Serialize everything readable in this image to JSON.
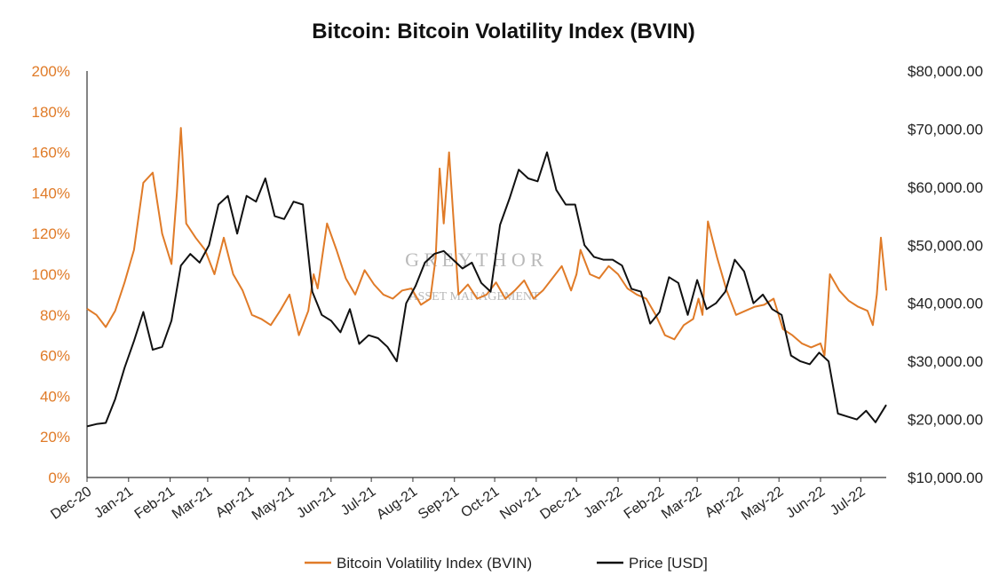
{
  "chart_data": {
    "type": "line",
    "title": "Bitcoin: Bitcoin Volatility Index (BVIN)",
    "x_tick_labels": [
      "Dec-20",
      "Jan-21",
      "Feb-21",
      "Mar-21",
      "Apr-21",
      "May-21",
      "Jun-21",
      "Jul-21",
      "Aug-21",
      "Sep-21",
      "Oct-21",
      "Nov-21",
      "Dec-21",
      "Jan-22",
      "Feb-22",
      "Mar-22",
      "Apr-22",
      "May-22",
      "Jun-22",
      "Jul-22"
    ],
    "y_left": {
      "ticks": [
        "0%",
        "20%",
        "40%",
        "60%",
        "80%",
        "100%",
        "120%",
        "140%",
        "160%",
        "180%",
        "200%"
      ],
      "range": [
        0,
        200
      ]
    },
    "y_right": {
      "ticks": [
        "$10,000.00",
        "$20,000.00",
        "$30,000.00",
        "$40,000.00",
        "$50,000.00",
        "$60,000.00",
        "$70,000.00",
        "$80,000.00"
      ],
      "range": [
        10000,
        80000
      ]
    },
    "grid": false,
    "legend_position": "bottom",
    "watermark": {
      "line1": "G R E Y T H O R",
      "line2": "ASSET MANAGEMENT"
    },
    "series": [
      {
        "name": "Bitcoin Volatility Index (BVIN)",
        "axis": "left",
        "color": "#E07B28",
        "x": [
          "2020-12-01",
          "2020-12-08",
          "2020-12-15",
          "2020-12-22",
          "2020-12-29",
          "2021-01-05",
          "2021-01-12",
          "2021-01-19",
          "2021-01-26",
          "2021-02-02",
          "2021-02-06",
          "2021-02-09",
          "2021-02-13",
          "2021-02-20",
          "2021-02-27",
          "2021-03-06",
          "2021-03-13",
          "2021-03-20",
          "2021-03-27",
          "2021-04-03",
          "2021-04-10",
          "2021-04-17",
          "2021-04-24",
          "2021-05-01",
          "2021-05-08",
          "2021-05-15",
          "2021-05-19",
          "2021-05-22",
          "2021-05-29",
          "2021-06-05",
          "2021-06-12",
          "2021-06-19",
          "2021-06-26",
          "2021-07-03",
          "2021-07-10",
          "2021-07-17",
          "2021-07-24",
          "2021-07-31",
          "2021-08-07",
          "2021-08-14",
          "2021-08-18",
          "2021-08-21",
          "2021-08-24",
          "2021-08-28",
          "2021-09-04",
          "2021-09-11",
          "2021-09-18",
          "2021-09-25",
          "2021-10-02",
          "2021-10-09",
          "2021-10-16",
          "2021-10-23",
          "2021-10-30",
          "2021-11-06",
          "2021-11-13",
          "2021-11-20",
          "2021-11-27",
          "2021-12-01",
          "2021-12-04",
          "2021-12-11",
          "2021-12-18",
          "2021-12-25",
          "2022-01-01",
          "2022-01-08",
          "2022-01-15",
          "2022-01-22",
          "2022-01-29",
          "2022-02-05",
          "2022-02-12",
          "2022-02-19",
          "2022-02-26",
          "2022-03-02",
          "2022-03-05",
          "2022-03-09",
          "2022-03-16",
          "2022-03-23",
          "2022-03-30",
          "2022-04-06",
          "2022-04-13",
          "2022-04-20",
          "2022-04-27",
          "2022-05-04",
          "2022-05-11",
          "2022-05-18",
          "2022-05-25",
          "2022-06-01",
          "2022-06-04",
          "2022-06-08",
          "2022-06-15",
          "2022-06-22",
          "2022-06-29",
          "2022-07-06",
          "2022-07-10",
          "2022-07-13",
          "2022-07-16",
          "2022-07-20"
        ],
        "y": [
          83,
          80,
          74,
          82,
          96,
          112,
          145,
          150,
          120,
          105,
          140,
          172,
          125,
          118,
          112,
          100,
          118,
          100,
          92,
          80,
          78,
          75,
          82,
          90,
          70,
          82,
          100,
          93,
          125,
          112,
          98,
          90,
          102,
          95,
          90,
          88,
          92,
          93,
          85,
          88,
          108,
          152,
          125,
          160,
          90,
          95,
          88,
          90,
          96,
          88,
          92,
          97,
          88,
          92,
          98,
          104,
          92,
          100,
          112,
          100,
          98,
          104,
          100,
          93,
          90,
          88,
          80,
          70,
          68,
          75,
          78,
          88,
          80,
          126,
          108,
          92,
          80,
          82,
          84,
          85,
          88,
          73,
          70,
          66,
          64,
          66,
          60,
          100,
          92,
          87,
          84,
          82,
          75,
          90,
          118,
          92
        ]
      },
      {
        "name": "Price [USD]",
        "axis": "right",
        "color": "#111111",
        "x": [
          "2020-12-01",
          "2020-12-08",
          "2020-12-15",
          "2020-12-22",
          "2020-12-29",
          "2021-01-05",
          "2021-01-12",
          "2021-01-19",
          "2021-01-26",
          "2021-02-02",
          "2021-02-09",
          "2021-02-16",
          "2021-02-23",
          "2021-03-02",
          "2021-03-09",
          "2021-03-16",
          "2021-03-23",
          "2021-03-30",
          "2021-04-06",
          "2021-04-13",
          "2021-04-20",
          "2021-04-27",
          "2021-05-04",
          "2021-05-11",
          "2021-05-18",
          "2021-05-25",
          "2021-06-01",
          "2021-06-08",
          "2021-06-15",
          "2021-06-22",
          "2021-06-29",
          "2021-07-06",
          "2021-07-13",
          "2021-07-20",
          "2021-07-27",
          "2021-08-03",
          "2021-08-10",
          "2021-08-17",
          "2021-08-24",
          "2021-08-31",
          "2021-09-07",
          "2021-09-14",
          "2021-09-21",
          "2021-09-28",
          "2021-10-05",
          "2021-10-12",
          "2021-10-19",
          "2021-10-26",
          "2021-11-02",
          "2021-11-09",
          "2021-11-16",
          "2021-11-23",
          "2021-11-30",
          "2021-12-07",
          "2021-12-14",
          "2021-12-21",
          "2021-12-28",
          "2022-01-04",
          "2022-01-11",
          "2022-01-18",
          "2022-01-25",
          "2022-02-01",
          "2022-02-08",
          "2022-02-15",
          "2022-02-22",
          "2022-03-01",
          "2022-03-08",
          "2022-03-15",
          "2022-03-22",
          "2022-03-29",
          "2022-04-05",
          "2022-04-12",
          "2022-04-19",
          "2022-04-26",
          "2022-05-03",
          "2022-05-10",
          "2022-05-17",
          "2022-05-24",
          "2022-05-31",
          "2022-06-07",
          "2022-06-14",
          "2022-06-21",
          "2022-06-28",
          "2022-07-05",
          "2022-07-12",
          "2022-07-20"
        ],
        "y": [
          18800,
          19200,
          19400,
          23500,
          28900,
          33500,
          38500,
          32000,
          32500,
          37000,
          46500,
          48500,
          47000,
          50000,
          57000,
          58500,
          52000,
          58500,
          57500,
          61500,
          55000,
          54500,
          57500,
          57000,
          42000,
          38000,
          37000,
          35000,
          39000,
          33000,
          34500,
          34000,
          32500,
          30000,
          40000,
          43000,
          47000,
          48500,
          49000,
          47500,
          46000,
          47000,
          43500,
          42000,
          53500,
          58000,
          63000,
          61500,
          61000,
          66000,
          59500,
          57000,
          57000,
          50000,
          48000,
          47500,
          47500,
          46500,
          42500,
          42000,
          36500,
          38500,
          44500,
          43500,
          38000,
          44000,
          39000,
          40000,
          42000,
          47500,
          45500,
          40000,
          41500,
          39000,
          38000,
          31000,
          30000,
          29500,
          31500,
          30000,
          21000,
          20500,
          20000,
          21500,
          19500,
          22500
        ]
      }
    ]
  }
}
